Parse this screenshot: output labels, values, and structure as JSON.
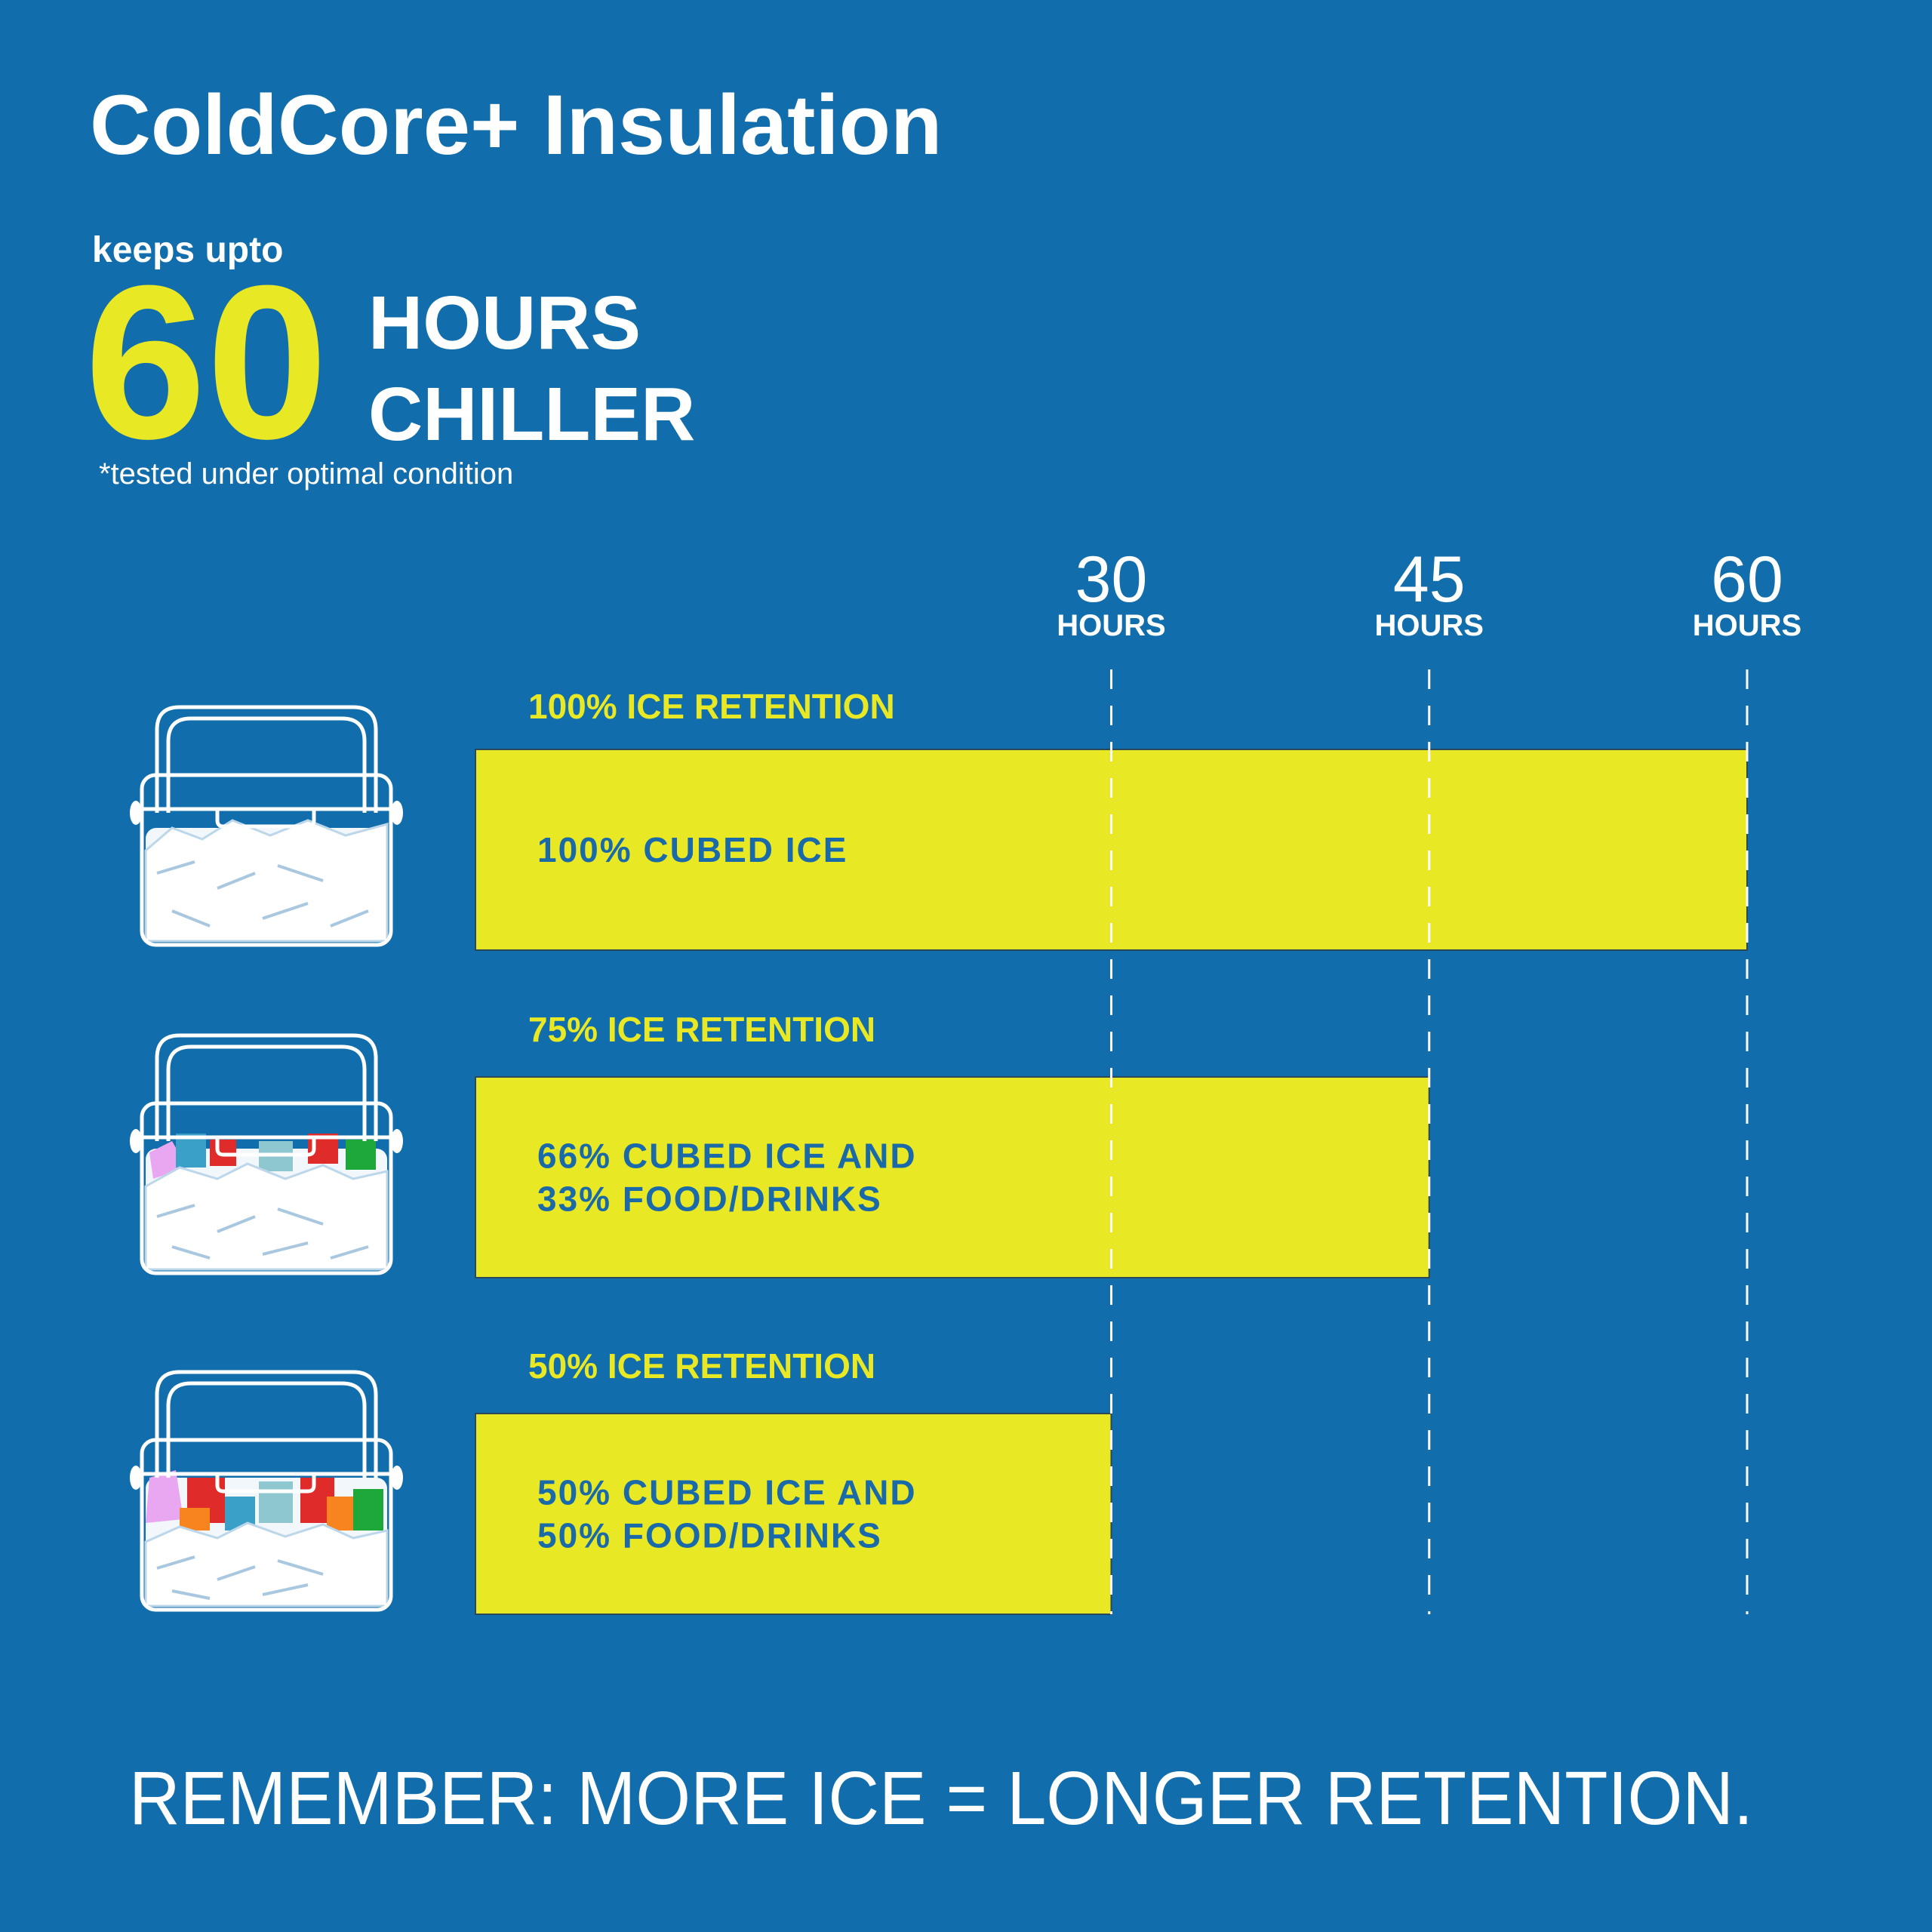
{
  "chart_data": {
    "type": "bar",
    "orientation": "horizontal",
    "title": "ColdCore+ Insulation",
    "kicker": "keeps upto",
    "headline_number": "60",
    "headline_lines": [
      "HOURS",
      "CHILLER"
    ],
    "note": "*tested under optimal condition",
    "categories": [
      "100% ICE RETENTION",
      "75% ICE RETENTION",
      "50% ICE RETENTION"
    ],
    "bar_labels": [
      [
        "100% CUBED ICE"
      ],
      [
        "66% CUBED ICE AND",
        "33% FOOD/DRINKS"
      ],
      [
        "50% CUBED ICE AND",
        "50% FOOD/DRINKS"
      ]
    ],
    "values": [
      60,
      45,
      30
    ],
    "color": "#e8e825",
    "xlim": [
      0,
      60
    ],
    "xticks": [
      30,
      45,
      60
    ],
    "xtick_unit": "HOURS",
    "grid": true,
    "footer": "REMEMBER: MORE ICE = LONGER RETENTION."
  }
}
